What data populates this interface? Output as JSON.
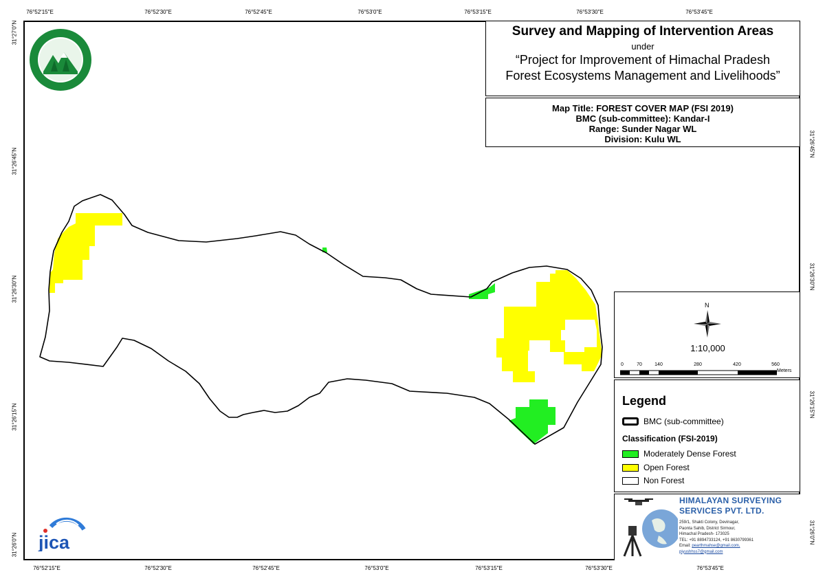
{
  "map": {
    "graticule": {
      "top_lon": [
        "76°52'15\"E",
        "76°52'30\"E",
        "76°52'45\"E",
        "76°53'0\"E",
        "76°53'15\"E",
        "76°53'30\"E",
        "76°53'45\"E"
      ],
      "bottom_lon": [
        "76°52'15\"E",
        "76°52'30\"E",
        "76°52'45\"E",
        "76°53'0\"E",
        "76°53'15\"E",
        "76°53'30\"E",
        "76°53'45\"E"
      ],
      "left_lat": [
        "31°27'0\"N",
        "31°26'45\"N",
        "31°26'30\"N",
        "31°26'15\"N",
        "31°26'0\"N"
      ],
      "right_lat": [
        "31°26'45\"N",
        "31°26'30\"N",
        "31°26'15\"N",
        "31°26'0\"N"
      ]
    },
    "colors": {
      "moderately_dense": "#22ee22",
      "open_forest": "#ffff00",
      "non_forest": "#ffffff",
      "boundary": "#000000"
    }
  },
  "title": {
    "main": "Survey and Mapping of Intervention Areas",
    "under": "under",
    "project_line1": "“Project for Improvement of Himachal Pradesh",
    "project_line2": "Forest Ecosystems Management and Livelihoods”"
  },
  "info": {
    "map_title": "Map Title: FOREST COVER MAP (FSI 2019)",
    "bmc": "BMC (sub-committee): Kandar-I",
    "range": "Range: Sunder Nagar WL",
    "division": "Division: Kulu WL"
  },
  "north": {
    "letter": "N",
    "icon": "compass-rose-icon"
  },
  "scale": {
    "ratio": "1:10,000",
    "ticks": [
      "0",
      "70",
      "140",
      "280",
      "420",
      "560"
    ],
    "unit": "Meters"
  },
  "legend": {
    "title": "Legend",
    "bmc_label": "BMC (sub-committee)",
    "classification_title": "Classification (FSI-2019)",
    "items": [
      {
        "label": "Moderately Dense Forest",
        "color": "#22ee22"
      },
      {
        "label": "Open Forest",
        "color": "#ffff00"
      },
      {
        "label": "Non Forest",
        "color": "#ffffff"
      }
    ]
  },
  "company": {
    "name_line1": "HIMALAYAN SURVEYING",
    "name_line2": "SERVICES PVT. LTD.",
    "addr1": "259/1, Shakti Colony, Devinagar,",
    "addr2": "Paonta Sahib, District Sirmour,",
    "addr3": "Himachal Pradesh- 173025",
    "tel": "TEL: +91 8894733124, +91 8630799361",
    "email_label": "Email: ",
    "email1": "pearthmahse@gmail.com,",
    "email2": "piyushhss7@gmail.com"
  },
  "logos": {
    "left_top": "hp-forest-department-logo",
    "left_bottom": "jica-logo",
    "jica_text": "jica"
  }
}
